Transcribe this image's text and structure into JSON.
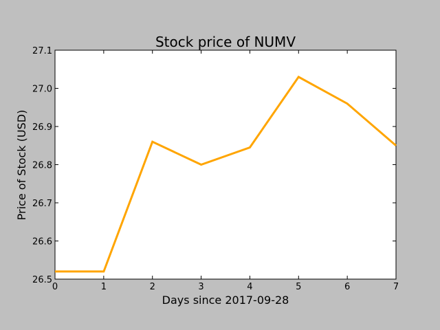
{
  "chart_data": {
    "type": "line",
    "title": "Stock price of NUMV",
    "xlabel": "Days since 2017-09-28",
    "ylabel": "Price of Stock (USD)",
    "xlim": [
      0,
      7
    ],
    "ylim": [
      26.5,
      27.1
    ],
    "xticks": [
      "0",
      "1",
      "2",
      "3",
      "4",
      "5",
      "6",
      "7"
    ],
    "yticks": [
      "26.5",
      "26.6",
      "26.7",
      "26.8",
      "26.9",
      "27.0",
      "27.1"
    ],
    "grid": false,
    "series": [
      {
        "color": "#ffa500",
        "x": [
          0,
          1,
          2,
          3,
          4,
          5,
          6,
          7
        ],
        "y": [
          26.52,
          26.52,
          26.86,
          26.8,
          26.845,
          27.03,
          26.96,
          26.85
        ]
      }
    ]
  }
}
